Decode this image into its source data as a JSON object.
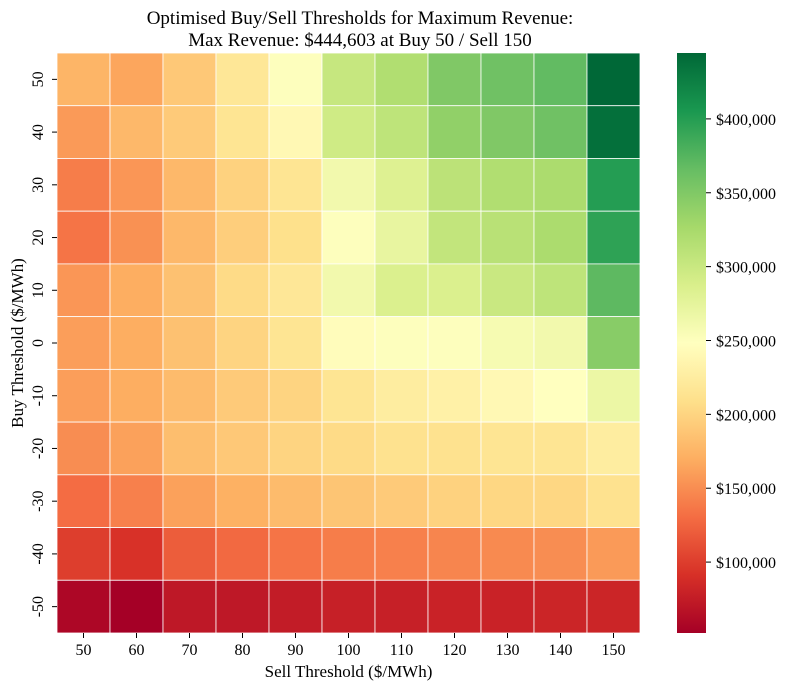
{
  "chart_data": {
    "type": "heatmap",
    "title": "Optimised Buy/Sell Thresholds for Maximum Revenue:",
    "subtitle": "Max Revenue: $444,603 at Buy 50 / Sell 150",
    "xlabel": "Sell Threshold ($/MWh)",
    "ylabel": "Buy Threshold ($/MWh)",
    "x_categories": [
      "50",
      "60",
      "70",
      "80",
      "90",
      "100",
      "110",
      "120",
      "130",
      "140",
      "150"
    ],
    "y_categories": [
      "50",
      "40",
      "30",
      "20",
      "10",
      "0",
      "-10",
      "-20",
      "-30",
      "-40",
      "-50"
    ],
    "values": [
      [
        175000,
        165000,
        190000,
        218000,
        250000,
        302000,
        318000,
        350000,
        360000,
        368000,
        444603
      ],
      [
        158000,
        178000,
        192000,
        215000,
        240000,
        295000,
        308000,
        340000,
        350000,
        360000,
        438000
      ],
      [
        140000,
        155000,
        178000,
        198000,
        215000,
        262000,
        282000,
        310000,
        318000,
        322000,
        400000
      ],
      [
        135000,
        152000,
        178000,
        195000,
        210000,
        250000,
        272000,
        305000,
        312000,
        322000,
        395000
      ],
      [
        155000,
        170000,
        185000,
        205000,
        218000,
        262000,
        285000,
        285000,
        300000,
        308000,
        370000
      ],
      [
        160000,
        170000,
        185000,
        200000,
        215000,
        245000,
        250000,
        250000,
        258000,
        262000,
        345000
      ],
      [
        160000,
        170000,
        180000,
        192000,
        200000,
        215000,
        225000,
        230000,
        240000,
        248000,
        268000
      ],
      [
        150000,
        162000,
        182000,
        190000,
        200000,
        205000,
        212000,
        212000,
        215000,
        215000,
        225000
      ],
      [
        130000,
        142000,
        162000,
        172000,
        180000,
        188000,
        192000,
        198000,
        202000,
        202000,
        212000
      ],
      [
        100000,
        92000,
        120000,
        128000,
        135000,
        140000,
        142000,
        145000,
        148000,
        150000,
        158000
      ],
      [
        58000,
        52000,
        72000,
        72000,
        75000,
        78000,
        78000,
        80000,
        80000,
        82000,
        82000
      ]
    ],
    "colorscale": "RdYlGn",
    "vmin": 52000,
    "vmax": 444603,
    "colorbar_ticks": [
      100000,
      150000,
      200000,
      250000,
      300000,
      350000,
      400000
    ],
    "colorbar_tick_labels": [
      "$100,000",
      "$150,000",
      "$200,000",
      "$250,000",
      "$300,000",
      "$350,000",
      "$400,000"
    ],
    "grid": true,
    "colors": {
      "cell_border": "#ffffff"
    }
  }
}
